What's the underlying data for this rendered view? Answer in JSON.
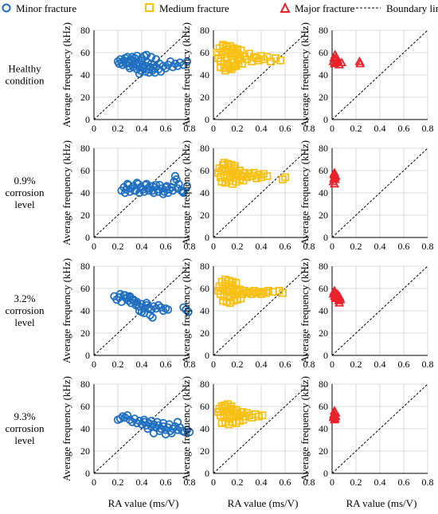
{
  "legend": {
    "items": [
      {
        "label": "Minor fracture",
        "marker": "circle",
        "color": "#1f6fc1"
      },
      {
        "label": "Medium fracture",
        "marker": "square",
        "color": "#f7c012"
      },
      {
        "label": "Major fracture",
        "marker": "triangle",
        "color": "#e8222a"
      },
      {
        "label": "Boundary line",
        "marker": "dashed-line",
        "color": "#000000"
      }
    ]
  },
  "row_labels": [
    [
      "Healthy",
      "condition"
    ],
    [
      "0.9%",
      "corrosion",
      "level"
    ],
    [
      "3.2%",
      "corrosion",
      "level"
    ],
    [
      "9.3%",
      "corrosion",
      "level"
    ]
  ],
  "ylabel": "Average frequency (kHz)",
  "xlabel": "RA value (ms/V)",
  "x_ticks": [
    "0",
    "0.2",
    "0.4",
    "0.6",
    "0.8"
  ],
  "y_ticks": [
    "0",
    "20",
    "40",
    "60",
    "80"
  ],
  "colors": {
    "minor": "#1f6fc1",
    "medium": "#f7c012",
    "major": "#e8222a",
    "grid": "#d9d9d9"
  },
  "chart_data": {
    "type": "scatter",
    "layout": "4 rows x 3 columns",
    "xlim": [
      0,
      0.8
    ],
    "ylim": [
      0,
      80
    ],
    "grid": true,
    "legend_position": "top",
    "boundary_line": {
      "from": [
        0,
        0
      ],
      "to": [
        0.8,
        80
      ],
      "style": "dashed"
    },
    "panels": [
      {
        "row": "Healthy condition",
        "series": "Minor fracture",
        "x": [
          0.2,
          0.21,
          0.22,
          0.23,
          0.24,
          0.25,
          0.26,
          0.27,
          0.28,
          0.29,
          0.3,
          0.3,
          0.31,
          0.32,
          0.33,
          0.34,
          0.35,
          0.36,
          0.37,
          0.38,
          0.39,
          0.4,
          0.4,
          0.41,
          0.42,
          0.43,
          0.44,
          0.45,
          0.46,
          0.47,
          0.48,
          0.49,
          0.5,
          0.5,
          0.51,
          0.52,
          0.54,
          0.55,
          0.56,
          0.58,
          0.6,
          0.62,
          0.64,
          0.66,
          0.68,
          0.7,
          0.72,
          0.75,
          0.78,
          0.32,
          0.36,
          0.4,
          0.44,
          0.48,
          0.52,
          0.38,
          0.28,
          0.46,
          0.34,
          0.42
        ],
        "y": [
          52,
          50,
          54,
          51,
          49,
          53,
          55,
          50,
          52,
          48,
          51,
          46,
          53,
          49,
          47,
          52,
          50,
          45,
          48,
          51,
          44,
          47,
          53,
          49,
          46,
          43,
          48,
          51,
          45,
          47,
          50,
          44,
          46,
          49,
          42,
          47,
          45,
          50,
          43,
          48,
          46,
          49,
          52,
          47,
          50,
          48,
          51,
          49,
          52,
          56,
          57,
          55,
          58,
          56,
          54,
          41,
          56,
          42,
          55,
          57
        ]
      },
      {
        "row": "Healthy condition",
        "series": "Medium fracture",
        "x": [
          0.03,
          0.04,
          0.05,
          0.06,
          0.07,
          0.08,
          0.09,
          0.1,
          0.11,
          0.12,
          0.13,
          0.14,
          0.15,
          0.16,
          0.17,
          0.18,
          0.19,
          0.2,
          0.21,
          0.22,
          0.23,
          0.24,
          0.26,
          0.28,
          0.3,
          0.32,
          0.34,
          0.36,
          0.38,
          0.4,
          0.42,
          0.45,
          0.48,
          0.52,
          0.56,
          0.06,
          0.09,
          0.12,
          0.15,
          0.18,
          0.21,
          0.08,
          0.11,
          0.14,
          0.17,
          0.2,
          0.1,
          0.13,
          0.16,
          0.19
        ],
        "y": [
          60,
          55,
          64,
          52,
          58,
          66,
          50,
          61,
          56,
          63,
          48,
          59,
          54,
          62,
          51,
          57,
          60,
          53,
          58,
          55,
          62,
          50,
          57,
          54,
          59,
          52,
          56,
          55,
          53,
          57,
          54,
          56,
          52,
          55,
          53,
          47,
          46,
          49,
          45,
          48,
          50,
          67,
          65,
          66,
          64,
          63,
          44,
          46,
          47,
          48
        ]
      },
      {
        "row": "Healthy condition",
        "series": "Major fracture",
        "x": [
          0.01,
          0.015,
          0.02,
          0.025,
          0.03,
          0.035,
          0.04,
          0.05,
          0.06,
          0.08,
          0.23,
          0.235
        ],
        "y": [
          52,
          55,
          50,
          58,
          54,
          56,
          51,
          53,
          49,
          51,
          52,
          50
        ]
      },
      {
        "row": "0.9% corrosion level",
        "series": "Minor fracture",
        "x": [
          0.23,
          0.25,
          0.27,
          0.29,
          0.31,
          0.33,
          0.35,
          0.37,
          0.39,
          0.41,
          0.43,
          0.45,
          0.47,
          0.49,
          0.51,
          0.53,
          0.55,
          0.57,
          0.59,
          0.61,
          0.63,
          0.65,
          0.67,
          0.69,
          0.71,
          0.73,
          0.75,
          0.78,
          0.26,
          0.3,
          0.34,
          0.38,
          0.42,
          0.46,
          0.5,
          0.54,
          0.58,
          0.62,
          0.66,
          0.7,
          0.74,
          0.28,
          0.36,
          0.44,
          0.52,
          0.6,
          0.68
        ],
        "y": [
          42,
          45,
          43,
          47,
          44,
          46,
          42,
          48,
          45,
          43,
          47,
          44,
          46,
          42,
          45,
          43,
          47,
          44,
          41,
          46,
          43,
          45,
          50,
          52,
          48,
          42,
          40,
          46,
          40,
          41,
          42,
          40,
          41,
          42,
          40,
          41,
          39,
          40,
          42,
          44,
          41,
          48,
          49,
          48,
          47,
          45,
          55
        ]
      },
      {
        "row": "0.9% corrosion level",
        "series": "Medium fracture",
        "x": [
          0.04,
          0.05,
          0.06,
          0.07,
          0.08,
          0.09,
          0.1,
          0.11,
          0.12,
          0.13,
          0.14,
          0.15,
          0.16,
          0.17,
          0.18,
          0.19,
          0.2,
          0.22,
          0.24,
          0.26,
          0.28,
          0.3,
          0.32,
          0.34,
          0.36,
          0.38,
          0.4,
          0.42,
          0.45,
          0.58,
          0.6,
          0.07,
          0.1,
          0.13,
          0.16,
          0.19,
          0.22,
          0.25,
          0.09,
          0.12,
          0.15,
          0.18
        ],
        "y": [
          58,
          62,
          54,
          60,
          65,
          56,
          61,
          53,
          59,
          63,
          55,
          60,
          57,
          62,
          54,
          58,
          56,
          60,
          55,
          58,
          54,
          57,
          55,
          58,
          53,
          56,
          54,
          57,
          55,
          52,
          54,
          50,
          49,
          51,
          48,
          50,
          52,
          51,
          67,
          66,
          65,
          64
        ]
      },
      {
        "row": "0.9% corrosion level",
        "series": "Major fracture",
        "x": [
          0.01,
          0.015,
          0.02,
          0.025,
          0.03,
          0.02,
          0.015,
          0.025,
          0.02
        ],
        "y": [
          50,
          53,
          56,
          52,
          55,
          58,
          57,
          54,
          48
        ]
      },
      {
        "row": "3.2% corrosion level",
        "series": "Minor fracture",
        "x": [
          0.17,
          0.19,
          0.21,
          0.23,
          0.25,
          0.27,
          0.29,
          0.3,
          0.31,
          0.33,
          0.35,
          0.36,
          0.38,
          0.4,
          0.42,
          0.44,
          0.46,
          0.48,
          0.5,
          0.52,
          0.54,
          0.56,
          0.58,
          0.6,
          0.62,
          0.47,
          0.49,
          0.75,
          0.77,
          0.79,
          0.22,
          0.26,
          0.3,
          0.34,
          0.38,
          0.42,
          0.4,
          0.44,
          0.36,
          0.32,
          0.28
        ],
        "y": [
          53,
          50,
          52,
          48,
          54,
          51,
          49,
          53,
          47,
          50,
          45,
          48,
          44,
          46,
          42,
          45,
          43,
          41,
          44,
          42,
          45,
          43,
          40,
          42,
          41,
          36,
          34,
          43,
          41,
          39,
          55,
          54,
          52,
          49,
          40,
          38,
          39,
          47,
          46,
          50,
          52
        ]
      },
      {
        "row": "3.2% corrosion level",
        "series": "Medium fracture",
        "x": [
          0.04,
          0.05,
          0.06,
          0.07,
          0.08,
          0.09,
          0.1,
          0.11,
          0.12,
          0.13,
          0.14,
          0.15,
          0.16,
          0.17,
          0.18,
          0.19,
          0.2,
          0.22,
          0.24,
          0.26,
          0.28,
          0.3,
          0.32,
          0.34,
          0.36,
          0.38,
          0.4,
          0.42,
          0.44,
          0.46,
          0.5,
          0.55,
          0.58,
          0.08,
          0.11,
          0.14,
          0.17,
          0.2,
          0.23,
          0.1,
          0.13,
          0.16,
          0.19
        ],
        "y": [
          58,
          62,
          55,
          66,
          60,
          53,
          64,
          57,
          61,
          52,
          59,
          63,
          56,
          60,
          54,
          58,
          57,
          59,
          55,
          58,
          56,
          57,
          55,
          58,
          56,
          57,
          55,
          57,
          56,
          58,
          57,
          58,
          56,
          49,
          48,
          47,
          49,
          50,
          51,
          68,
          67,
          66,
          65
        ]
      },
      {
        "row": "3.2% corrosion level",
        "series": "Major fracture",
        "x": [
          0.01,
          0.015,
          0.02,
          0.025,
          0.03,
          0.04,
          0.05,
          0.06,
          0.07,
          0.02,
          0.03,
          0.045,
          0.055,
          0.065,
          0.06
        ],
        "y": [
          55,
          57,
          53,
          56,
          52,
          54,
          51,
          53,
          50,
          58,
          51,
          55,
          49,
          52,
          47
        ]
      },
      {
        "row": "9.3% corrosion level",
        "series": "Minor fracture",
        "x": [
          0.2,
          0.22,
          0.24,
          0.26,
          0.28,
          0.3,
          0.32,
          0.34,
          0.36,
          0.38,
          0.4,
          0.42,
          0.44,
          0.46,
          0.48,
          0.5,
          0.52,
          0.54,
          0.56,
          0.58,
          0.6,
          0.62,
          0.64,
          0.66,
          0.68,
          0.7,
          0.72,
          0.74,
          0.76,
          0.78,
          0.8,
          0.45,
          0.5,
          0.55,
          0.6,
          0.65,
          0.42,
          0.48,
          0.53,
          0.58,
          0.63,
          0.7
        ],
        "y": [
          48,
          49,
          51,
          50,
          52,
          48,
          46,
          49,
          45,
          47,
          44,
          46,
          43,
          45,
          42,
          44,
          41,
          43,
          40,
          42,
          39,
          41,
          38,
          40,
          42,
          39,
          41,
          38,
          37,
          39,
          37,
          40,
          36,
          38,
          35,
          36,
          48,
          47,
          46,
          45,
          44,
          46
        ]
      },
      {
        "row": "9.3% corrosion level",
        "series": "Medium fracture",
        "x": [
          0.04,
          0.05,
          0.06,
          0.07,
          0.08,
          0.09,
          0.1,
          0.11,
          0.12,
          0.13,
          0.14,
          0.15,
          0.16,
          0.17,
          0.18,
          0.19,
          0.2,
          0.22,
          0.24,
          0.26,
          0.28,
          0.3,
          0.32,
          0.35,
          0.38,
          0.41,
          0.07,
          0.1,
          0.13,
          0.16,
          0.19,
          0.22,
          0.25,
          0.09,
          0.12,
          0.15
        ],
        "y": [
          55,
          58,
          52,
          60,
          56,
          50,
          59,
          53,
          57,
          49,
          55,
          58,
          51,
          56,
          53,
          57,
          54,
          52,
          55,
          51,
          54,
          52,
          50,
          53,
          51,
          52,
          45,
          46,
          44,
          46,
          45,
          47,
          48,
          61,
          62,
          60
        ]
      },
      {
        "row": "9.3% corrosion level",
        "series": "Major fracture",
        "x": [
          0.01,
          0.015,
          0.02,
          0.025,
          0.03,
          0.02,
          0.015,
          0.025,
          0.03,
          0.02
        ],
        "y": [
          50,
          53,
          48,
          55,
          51,
          56,
          52,
          49,
          54,
          51
        ]
      }
    ]
  }
}
